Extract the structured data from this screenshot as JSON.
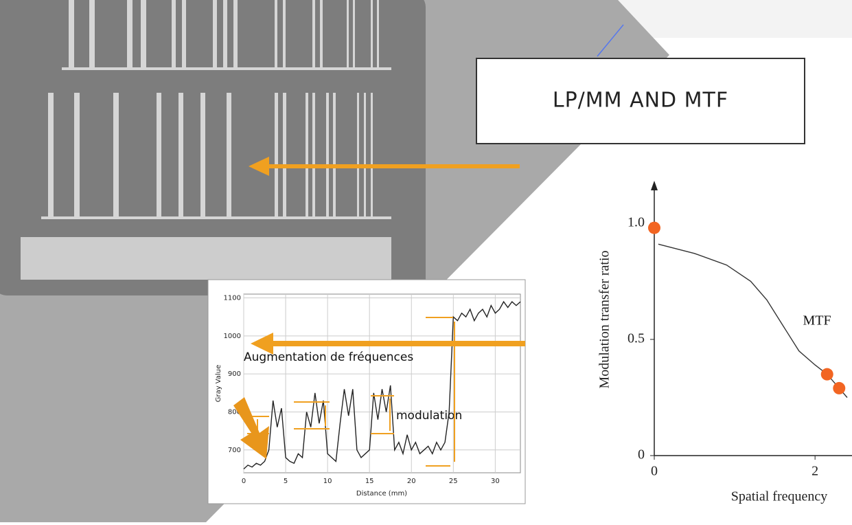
{
  "title": "LP/MM AND MTF",
  "chart_data": [
    {
      "type": "line",
      "x_label": "Distance (mm)",
      "y_label": "Gray Value",
      "annotations": [
        "Augmentation de fréquences",
        "modulation"
      ],
      "x": [
        0,
        0.5,
        1,
        1.5,
        2,
        2.5,
        3,
        3.5,
        4,
        4.5,
        5,
        5.5,
        6,
        6.5,
        7,
        7.5,
        8,
        8.5,
        9,
        9.5,
        10,
        10.5,
        11,
        11.5,
        12,
        12.5,
        13,
        13.5,
        14,
        14.5,
        15,
        15.5,
        16,
        16.5,
        17,
        17.5,
        18,
        18.5,
        19,
        19.5,
        20,
        20.5,
        21,
        21.5,
        22,
        22.5,
        23,
        23.5,
        24,
        24.5,
        25,
        25.5,
        26,
        26.5,
        27,
        27.5,
        28,
        28.5,
        29,
        29.5,
        30,
        30.5,
        31,
        31.5,
        32,
        32.5,
        33
      ],
      "series": [
        {
          "color": "#222222",
          "values": [
            650,
            660,
            655,
            665,
            660,
            670,
            700,
            830,
            760,
            810,
            680,
            670,
            665,
            690,
            680,
            800,
            760,
            850,
            770,
            830,
            690,
            680,
            670,
            770,
            860,
            790,
            860,
            700,
            680,
            690,
            700,
            850,
            780,
            860,
            800,
            870,
            700,
            720,
            690,
            740,
            700,
            720,
            690,
            700,
            710,
            690,
            720,
            700,
            720,
            800,
            1050,
            1040,
            1060,
            1050,
            1070,
            1040,
            1060,
            1070,
            1050,
            1080,
            1060,
            1070,
            1090,
            1075,
            1090,
            1080,
            1090
          ]
        }
      ],
      "xlim": [
        0,
        33
      ],
      "ylim": [
        640,
        1110
      ],
      "xticks": [
        0,
        5,
        10,
        15,
        20,
        25,
        30
      ],
      "yticks": [
        700,
        800,
        900,
        1000,
        1100
      ],
      "grid": true
    },
    {
      "type": "line",
      "x_label": "Spatial frequency",
      "y_label": "Modulation transfer ratio",
      "annotations": [
        "MTF"
      ],
      "series": [
        {
          "style": "line",
          "color": "#333333",
          "x": [
            0.05,
            0.5,
            0.9,
            1.2,
            1.4,
            1.6,
            1.8,
            2.0,
            2.15,
            2.3,
            2.4
          ],
          "values": [
            0.91,
            0.87,
            0.82,
            0.75,
            0.67,
            0.56,
            0.45,
            0.39,
            0.35,
            0.29,
            0.25
          ]
        },
        {
          "style": "points",
          "color": "#f26522",
          "x": [
            0,
            2.15,
            2.3
          ],
          "values": [
            0.98,
            0.35,
            0.29
          ]
        }
      ],
      "xlim": [
        0,
        2.4
      ],
      "ylim": [
        0,
        1.1
      ],
      "xticks": [
        0,
        2
      ],
      "yticks": [
        0,
        0.5,
        {
          "value": 1,
          "label": "1.0"
        }
      ],
      "grid": false
    }
  ]
}
